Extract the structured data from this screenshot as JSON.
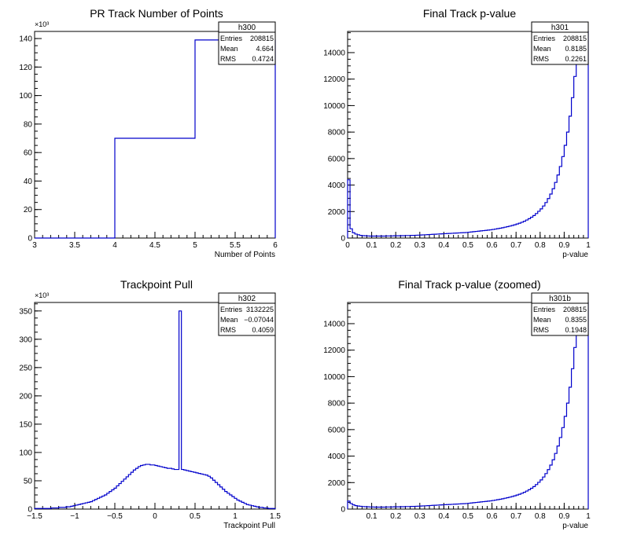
{
  "chart_data": [
    {
      "type": "histogram",
      "title": "PR Track Number of Points",
      "xlabel": "Number of Points",
      "ylabel": "",
      "y_multiplier": "×10³",
      "xlim": [
        3,
        6
      ],
      "ylim": [
        0,
        145
      ],
      "x_ticks": [
        3,
        3.5,
        4,
        4.5,
        5,
        5.5,
        6
      ],
      "x_tick_labels": [
        "3",
        "3.5",
        "4",
        "4.5",
        "5",
        "5.5",
        "6"
      ],
      "y_ticks": [
        0,
        20,
        40,
        60,
        80,
        100,
        120,
        140
      ],
      "y_tick_labels": [
        "0",
        "20",
        "40",
        "60",
        "80",
        "100",
        "120",
        "140"
      ],
      "stats": {
        "name": "h300",
        "rows": [
          {
            "label": "Entries",
            "value": "208815"
          },
          {
            "label": "Mean",
            "value": "4.664"
          },
          {
            "label": "RMS",
            "value": "0.4724"
          }
        ]
      },
      "series": [
        {
          "x": [
            3,
            4,
            5,
            6
          ],
          "values": [
            0,
            70,
            139
          ],
          "color": "#0000cc"
        }
      ]
    },
    {
      "type": "histogram",
      "title": "Final Track p-value",
      "xlabel": "p-value",
      "ylabel": "",
      "xlim": [
        0,
        1
      ],
      "ylim": [
        0,
        15600
      ],
      "x_ticks": [
        0,
        0.1,
        0.2,
        0.3,
        0.4,
        0.5,
        0.6,
        0.7,
        0.8,
        0.9,
        1
      ],
      "x_tick_labels": [
        "0",
        "0.1",
        "0.2",
        "0.3",
        "0.4",
        "0.5",
        "0.6",
        "0.7",
        "0.8",
        "0.9",
        "1"
      ],
      "y_ticks": [
        0,
        2000,
        4000,
        6000,
        8000,
        10000,
        12000,
        14000
      ],
      "y_tick_labels": [
        "0",
        "2000",
        "4000",
        "6000",
        "8000",
        "10000",
        "12000",
        "14000"
      ],
      "stats": {
        "name": "h301",
        "rows": [
          {
            "label": "Entries",
            "value": "208815"
          },
          {
            "label": "Mean",
            "value": "0.8185"
          },
          {
            "label": "RMS",
            "value": "0.2261"
          }
        ]
      },
      "series": [
        {
          "bin_width": 0.01,
          "x_start": 0,
          "color": "#0000cc",
          "values": [
            4400,
            700,
            400,
            300,
            250,
            200,
            180,
            170,
            160,
            150,
            150,
            150,
            150,
            150,
            150,
            150,
            160,
            160,
            160,
            170,
            170,
            170,
            180,
            180,
            190,
            190,
            200,
            200,
            210,
            220,
            230,
            240,
            250,
            260,
            270,
            280,
            290,
            300,
            310,
            320,
            330,
            340,
            350,
            360,
            370,
            380,
            390,
            400,
            410,
            420,
            440,
            460,
            480,
            500,
            520,
            540,
            560,
            580,
            600,
            620,
            650,
            680,
            710,
            740,
            780,
            820,
            860,
            900,
            950,
            1000,
            1060,
            1120,
            1190,
            1270,
            1360,
            1460,
            1570,
            1700,
            1850,
            2020,
            2200,
            2420,
            2680,
            2980,
            3320,
            3720,
            4200,
            4760,
            5400,
            6150,
            7000,
            8000,
            9200,
            10600,
            12200,
            14100,
            15600,
            15600,
            15600,
            15600
          ]
        }
      ]
    },
    {
      "type": "histogram",
      "title": "Trackpoint Pull",
      "xlabel": "Trackpoint Pull",
      "ylabel": "",
      "y_multiplier": "×10³",
      "xlim": [
        -1.5,
        1.5
      ],
      "ylim": [
        0,
        365
      ],
      "x_ticks": [
        -1.5,
        -1,
        -0.5,
        0,
        0.5,
        1,
        1.5
      ],
      "x_tick_labels": [
        "−1.5",
        "−1",
        "−0.5",
        "0",
        "0.5",
        "1",
        "1.5"
      ],
      "y_ticks": [
        0,
        50,
        100,
        150,
        200,
        250,
        300,
        350
      ],
      "y_tick_labels": [
        "0",
        "50",
        "100",
        "150",
        "200",
        "250",
        "300",
        "350"
      ],
      "stats": {
        "name": "h302",
        "rows": [
          {
            "label": "Entries",
            "value": "3132225"
          },
          {
            "label": "Mean",
            "value": "−0.07044"
          },
          {
            "label": "RMS",
            "value": "0.4059"
          }
        ]
      },
      "series": [
        {
          "bin_width": 0.03,
          "x_start": -1.5,
          "color": "#0000cc",
          "values": [
            1,
            1,
            1,
            1,
            1,
            1,
            1,
            2,
            2,
            2,
            3,
            3,
            3,
            4,
            4,
            5,
            6,
            7,
            8,
            9,
            10,
            11,
            12,
            13,
            15,
            17,
            19,
            21,
            23,
            25,
            28,
            31,
            34,
            37,
            41,
            45,
            49,
            53,
            57,
            61,
            65,
            69,
            72,
            75,
            77,
            78,
            79,
            79,
            78,
            78,
            77,
            76,
            75,
            74,
            73,
            72,
            72,
            71,
            70,
            70,
            350,
            70,
            69,
            68,
            67,
            66,
            65,
            64,
            63,
            62,
            61,
            60,
            58,
            55,
            51,
            47,
            43,
            39,
            35,
            31,
            28,
            25,
            22,
            19,
            16,
            14,
            12,
            10,
            8,
            7,
            6,
            5,
            4,
            3,
            3,
            2,
            2,
            1,
            1,
            1
          ]
        }
      ]
    },
    {
      "type": "histogram",
      "title": "Final Track p-value (zoomed)",
      "xlabel": "p-value",
      "ylabel": "",
      "xlim": [
        0,
        1
      ],
      "ylim": [
        0,
        15600
      ],
      "x_ticks": [
        0.1,
        0.2,
        0.3,
        0.4,
        0.5,
        0.6,
        0.7,
        0.8,
        0.9,
        1
      ],
      "x_tick_labels": [
        "0.1",
        "0.2",
        "0.3",
        "0.4",
        "0.5",
        "0.6",
        "0.7",
        "0.8",
        "0.9",
        "1"
      ],
      "y_ticks": [
        0,
        2000,
        4000,
        6000,
        8000,
        10000,
        12000,
        14000
      ],
      "y_tick_labels": [
        "0",
        "2000",
        "4000",
        "6000",
        "8000",
        "10000",
        "12000",
        "14000"
      ],
      "stats": {
        "name": "h301b",
        "rows": [
          {
            "label": "Entries",
            "value": "208815"
          },
          {
            "label": "Mean",
            "value": "0.8355"
          },
          {
            "label": "RMS",
            "value": "0.1948"
          }
        ]
      },
      "series": [
        {
          "bin_width": 0.01,
          "x_start": 0,
          "color": "#0000cc",
          "values": [
            600,
            420,
            320,
            260,
            230,
            210,
            190,
            180,
            170,
            160,
            160,
            150,
            150,
            150,
            150,
            150,
            160,
            160,
            160,
            170,
            170,
            170,
            180,
            180,
            190,
            190,
            200,
            200,
            210,
            220,
            230,
            240,
            250,
            260,
            270,
            280,
            290,
            300,
            310,
            320,
            330,
            340,
            350,
            360,
            370,
            380,
            390,
            400,
            410,
            420,
            440,
            460,
            480,
            500,
            520,
            540,
            560,
            580,
            600,
            620,
            650,
            680,
            710,
            740,
            780,
            820,
            860,
            900,
            950,
            1000,
            1060,
            1120,
            1190,
            1270,
            1360,
            1460,
            1570,
            1700,
            1850,
            2020,
            2200,
            2420,
            2680,
            2980,
            3320,
            3720,
            4200,
            4760,
            5400,
            6150,
            7000,
            8000,
            9200,
            10600,
            12200,
            14100,
            15600,
            15600,
            15600,
            15600
          ]
        }
      ]
    }
  ]
}
